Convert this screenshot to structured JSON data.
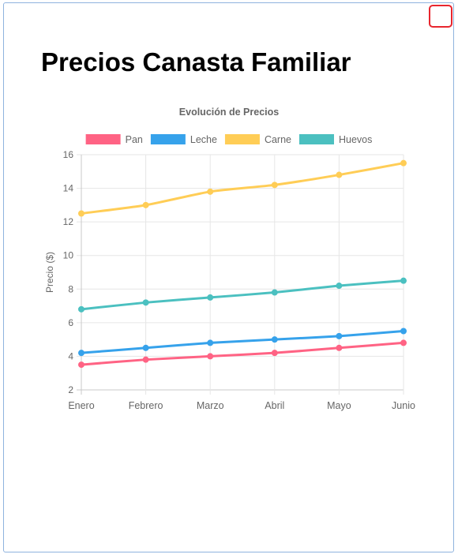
{
  "window": {
    "corner_button_color": "#e8262e",
    "frame_color": "#8fb3de"
  },
  "page": {
    "title": "Precios Canasta Familiar"
  },
  "chart_data": {
    "type": "line",
    "title": "Evolución de Precios",
    "xlabel": "",
    "ylabel": "Precio ($)",
    "categories": [
      "Enero",
      "Febrero",
      "Marzo",
      "Abril",
      "Mayo",
      "Junio"
    ],
    "ylim": [
      2,
      16
    ],
    "yticks": [
      2,
      4,
      6,
      8,
      10,
      12,
      14,
      16
    ],
    "grid": true,
    "legend_position": "top",
    "series": [
      {
        "name": "Pan",
        "color": "#ff6384",
        "values": [
          3.5,
          3.8,
          4.0,
          4.2,
          4.5,
          4.8
        ]
      },
      {
        "name": "Leche",
        "color": "#36a2eb",
        "values": [
          4.2,
          4.5,
          4.8,
          5.0,
          5.2,
          5.5
        ]
      },
      {
        "name": "Carne",
        "color": "#ffcd56",
        "values": [
          12.5,
          13.0,
          13.8,
          14.2,
          14.8,
          15.5
        ]
      },
      {
        "name": "Huevos",
        "color": "#4bc0c0",
        "values": [
          6.8,
          7.2,
          7.5,
          7.8,
          8.2,
          8.5
        ]
      }
    ]
  }
}
